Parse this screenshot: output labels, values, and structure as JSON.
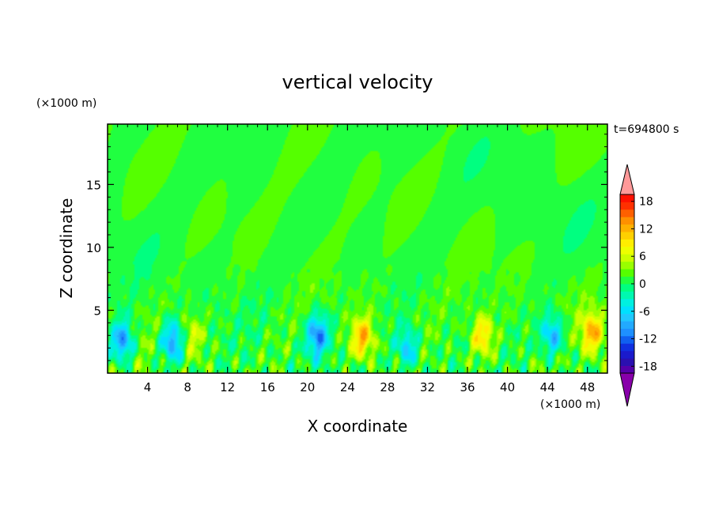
{
  "chart_data": {
    "type": "heatmap",
    "title": "vertical velocity",
    "time_label": "t=694800 s",
    "xlabel": "X coordinate",
    "ylabel": "Z coordinate",
    "x_unit": "(×1000 m)",
    "y_unit": "(×1000 m)",
    "xlim": [
      0,
      50
    ],
    "ylim": [
      0,
      19.8
    ],
    "x_ticks": [
      "4",
      "8",
      "12",
      "16",
      "20",
      "24",
      "28",
      "32",
      "36",
      "40",
      "44",
      "48"
    ],
    "y_ticks": [
      "5",
      "10",
      "15"
    ],
    "x_tick_values": [
      4,
      8,
      12,
      16,
      20,
      24,
      28,
      32,
      36,
      40,
      44,
      48
    ],
    "y_tick_values": [
      5,
      10,
      15
    ],
    "colorbar": {
      "levels": [
        -21,
        -19.5,
        -18,
        -16.5,
        -15,
        -13.5,
        -12,
        -10.5,
        -9,
        -7.5,
        -6,
        -4.5,
        -3,
        -1.5,
        0,
        1.5,
        3,
        4.5,
        6,
        7.5,
        9,
        10.5,
        12,
        13.5,
        15,
        16.5,
        18,
        19.5,
        21
      ],
      "tick_labels": [
        "18",
        "12",
        "6",
        "0",
        "-6",
        "-12",
        "-18"
      ],
      "tick_values": [
        18,
        12,
        6,
        0,
        -6,
        -12,
        -18
      ],
      "colors_low_to_high": [
        "#8800aa",
        "#5500aa",
        "#2a10b0",
        "#1a1acc",
        "#1030e0",
        "#1060f0",
        "#1e90ff",
        "#22aaff",
        "#20c8ff",
        "#00e0ff",
        "#00f0e0",
        "#00f8b0",
        "#00ff80",
        "#20ff40",
        "#55ff00",
        "#99ff00",
        "#ccff00",
        "#eeff00",
        "#ffee00",
        "#ffd000",
        "#ffb000",
        "#ff9000",
        "#ff6000",
        "#ff3000",
        "#ff1000",
        "#ff9090"
      ],
      "under_color": "#8800aa",
      "over_color": "#ff9999"
    },
    "features": [
      {
        "x": 1.5,
        "z": 2.5,
        "w": -11
      },
      {
        "x": 6.5,
        "z": 2.5,
        "w": -10
      },
      {
        "x": 8.5,
        "z": 3.0,
        "w": 5
      },
      {
        "x": 21.0,
        "z": 3.0,
        "w": -11
      },
      {
        "x": 25.5,
        "z": 2.8,
        "w": 10
      },
      {
        "x": 30.0,
        "z": 2.0,
        "w": -8
      },
      {
        "x": 37.5,
        "z": 3.0,
        "w": 8
      },
      {
        "x": 44.5,
        "z": 3.0,
        "w": -9
      },
      {
        "x": 48.5,
        "z": 3.2,
        "w": 10
      }
    ]
  }
}
